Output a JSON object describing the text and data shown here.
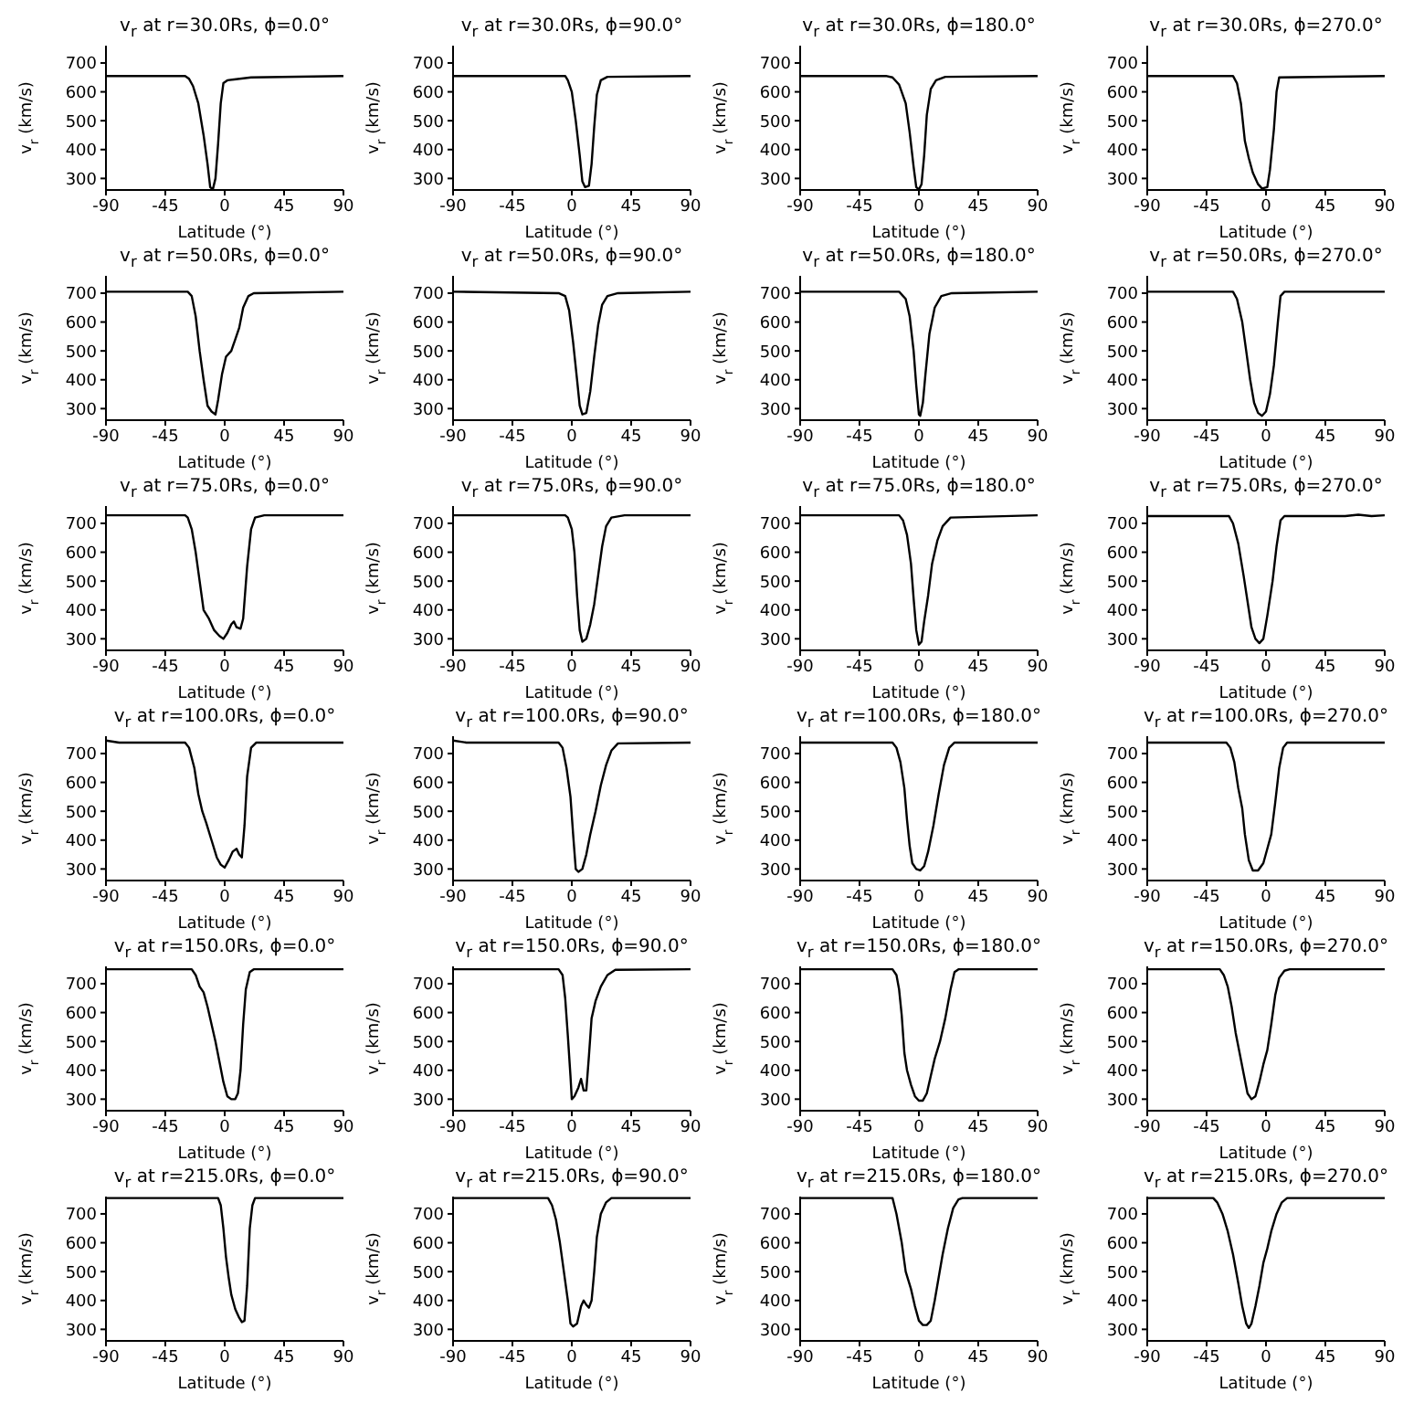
{
  "chart_data": [
    {
      "type": "line",
      "title": "v$_{r}$ at r=30.0Rs, ϕ=0.0°",
      "xlabel": "Latitude (°)",
      "ylabel": "v$_{r}$ (km/s)",
      "xlim": [
        -90,
        90
      ],
      "xticks": [
        -90,
        -45,
        0,
        45,
        90
      ],
      "ylim": [
        260,
        760
      ],
      "yticks": [
        300,
        400,
        500,
        600,
        700
      ],
      "x": [
        -90,
        -30,
        -27,
        -24,
        -20,
        -16,
        -13,
        -11,
        -9,
        -7,
        -5,
        -3,
        -1,
        2,
        20,
        90
      ],
      "series": [
        {
          "color": "#000000",
          "values": [
            655,
            655,
            645,
            620,
            560,
            450,
            350,
            270,
            262,
            300,
            420,
            560,
            630,
            640,
            650,
            655
          ]
        }
      ]
    },
    {
      "type": "line",
      "title": "v$_{r}$ at r=30.0Rs, ϕ=90.0°",
      "xlabel": "Latitude (°)",
      "ylabel": "v$_{r}$ (km/s)",
      "xlim": [
        -90,
        90
      ],
      "xticks": [
        -90,
        -45,
        0,
        45,
        90
      ],
      "ylim": [
        260,
        760
      ],
      "yticks": [
        300,
        400,
        500,
        600,
        700
      ],
      "x": [
        -90,
        -5,
        -3,
        0,
        3,
        6,
        8,
        10,
        13,
        15,
        17,
        19,
        22,
        27,
        90
      ],
      "series": [
        {
          "color": "#000000",
          "values": [
            655,
            655,
            640,
            600,
            500,
            380,
            290,
            270,
            275,
            350,
            480,
            590,
            640,
            652,
            655
          ]
        }
      ]
    },
    {
      "type": "line",
      "title": "v$_{r}$ at r=30.0Rs, ϕ=180.0°",
      "xlabel": "Latitude (°)",
      "ylabel": "v$_{r}$ (km/s)",
      "xlim": [
        -90,
        90
      ],
      "xticks": [
        -90,
        -45,
        0,
        45,
        90
      ],
      "ylim": [
        260,
        760
      ],
      "yticks": [
        300,
        400,
        500,
        600,
        700
      ],
      "x": [
        -90,
        -25,
        -20,
        -15,
        -10,
        -7,
        -4,
        -2,
        0,
        2,
        4,
        6,
        9,
        13,
        20,
        90
      ],
      "series": [
        {
          "color": "#000000",
          "values": [
            655,
            655,
            650,
            625,
            560,
            460,
            340,
            270,
            262,
            280,
            380,
            520,
            610,
            640,
            652,
            655
          ]
        }
      ]
    },
    {
      "type": "line",
      "title": "v$_{r}$ at r=30.0Rs, ϕ=270.0°",
      "xlabel": "Latitude (°)",
      "ylabel": "v$_{r}$ (km/s)",
      "xlim": [
        -90,
        90
      ],
      "xticks": [
        -90,
        -45,
        0,
        45,
        90
      ],
      "ylim": [
        260,
        760
      ],
      "yticks": [
        300,
        400,
        500,
        600,
        700
      ],
      "x": [
        -90,
        -25,
        -22,
        -19,
        -16,
        -13,
        -10,
        -6,
        -3,
        1,
        3,
        6,
        8,
        10,
        90
      ],
      "series": [
        {
          "color": "#000000",
          "values": [
            655,
            655,
            630,
            560,
            430,
            370,
            320,
            280,
            265,
            270,
            330,
            470,
            600,
            650,
            655
          ]
        }
      ]
    },
    {
      "type": "line",
      "title": "v$_{r}$ at r=50.0Rs, ϕ=0.0°",
      "xlabel": "Latitude (°)",
      "ylabel": "v$_{r}$ (km/s)",
      "xlim": [
        -90,
        90
      ],
      "xticks": [
        -90,
        -45,
        0,
        45,
        90
      ],
      "ylim": [
        260,
        760
      ],
      "yticks": [
        300,
        400,
        500,
        600,
        700
      ],
      "x": [
        -90,
        -28,
        -25,
        -22,
        -19,
        -16,
        -13,
        -10,
        -7,
        -5,
        -2,
        1,
        5,
        8,
        11,
        14,
        18,
        22,
        90
      ],
      "series": [
        {
          "color": "#000000",
          "values": [
            705,
            705,
            690,
            620,
            500,
            400,
            310,
            290,
            280,
            330,
            420,
            480,
            500,
            540,
            580,
            650,
            690,
            700,
            705
          ]
        }
      ]
    },
    {
      "type": "line",
      "title": "v$_{r}$ at r=50.0Rs, ϕ=90.0°",
      "xlabel": "Latitude (°)",
      "ylabel": "v$_{r}$ (km/s)",
      "xlim": [
        -90,
        90
      ],
      "xticks": [
        -90,
        -45,
        0,
        45,
        90
      ],
      "ylim": [
        260,
        760
      ],
      "yticks": [
        300,
        400,
        500,
        600,
        700
      ],
      "x": [
        -90,
        -10,
        -5,
        -2,
        1,
        4,
        6,
        8,
        11,
        14,
        17,
        20,
        23,
        27,
        35,
        90
      ],
      "series": [
        {
          "color": "#000000",
          "values": [
            705,
            700,
            690,
            640,
            530,
            400,
            310,
            280,
            285,
            360,
            480,
            590,
            660,
            690,
            700,
            705
          ]
        }
      ]
    },
    {
      "type": "line",
      "title": "v$_{r}$ at r=50.0Rs, ϕ=180.0°",
      "xlabel": "Latitude (°)",
      "ylabel": "v$_{r}$ (km/s)",
      "xlim": [
        -90,
        90
      ],
      "xticks": [
        -90,
        -45,
        0,
        45,
        90
      ],
      "ylim": [
        260,
        760
      ],
      "yticks": [
        300,
        400,
        500,
        600,
        700
      ],
      "x": [
        -90,
        -15,
        -10,
        -7,
        -4,
        -2,
        0,
        1,
        3,
        5,
        8,
        12,
        17,
        25,
        90
      ],
      "series": [
        {
          "color": "#000000",
          "values": [
            705,
            705,
            680,
            620,
            500,
            380,
            280,
            275,
            320,
            420,
            560,
            650,
            690,
            700,
            705
          ]
        }
      ]
    },
    {
      "type": "line",
      "title": "v$_{r}$ at r=50.0Rs, ϕ=270.0°",
      "xlabel": "Latitude (°)",
      "ylabel": "v$_{r}$ (km/s)",
      "xlim": [
        -90,
        90
      ],
      "xticks": [
        -90,
        -45,
        0,
        45,
        90
      ],
      "ylim": [
        260,
        760
      ],
      "yticks": [
        300,
        400,
        500,
        600,
        700
      ],
      "x": [
        -90,
        -25,
        -22,
        -18,
        -15,
        -12,
        -9,
        -6,
        -3,
        0,
        3,
        6,
        9,
        11,
        14,
        90
      ],
      "series": [
        {
          "color": "#000000",
          "values": [
            705,
            705,
            680,
            600,
            500,
            400,
            320,
            285,
            275,
            290,
            350,
            450,
            600,
            690,
            705,
            705
          ]
        }
      ]
    },
    {
      "type": "line",
      "title": "v$_{r}$ at r=75.0Rs, ϕ=0.0°",
      "xlabel": "Latitude (°)",
      "ylabel": "v$_{r}$ (km/s)",
      "xlim": [
        -90,
        90
      ],
      "xticks": [
        -90,
        -45,
        0,
        45,
        90
      ],
      "ylim": [
        260,
        760
      ],
      "yticks": [
        300,
        400,
        500,
        600,
        700
      ],
      "x": [
        -90,
        -30,
        -28,
        -25,
        -22,
        -19,
        -16,
        -12,
        -8,
        -4,
        -1,
        2,
        5,
        7,
        9,
        12,
        14,
        17,
        20,
        23,
        30,
        90
      ],
      "series": [
        {
          "color": "#000000",
          "values": [
            728,
            728,
            720,
            680,
            600,
            500,
            400,
            370,
            330,
            310,
            300,
            320,
            350,
            360,
            340,
            335,
            370,
            550,
            680,
            720,
            728,
            728
          ]
        }
      ]
    },
    {
      "type": "line",
      "title": "v$_{r}$ at r=75.0Rs, ϕ=90.0°",
      "xlabel": "Latitude (°)",
      "ylabel": "v$_{r}$ (km/s)",
      "xlim": [
        -90,
        90
      ],
      "xticks": [
        -90,
        -45,
        0,
        45,
        90
      ],
      "ylim": [
        260,
        760
      ],
      "yticks": [
        300,
        400,
        500,
        600,
        700
      ],
      "x": [
        -90,
        -5,
        -3,
        0,
        2,
        4,
        6,
        8,
        11,
        14,
        17,
        20,
        23,
        26,
        30,
        40,
        90
      ],
      "series": [
        {
          "color": "#000000",
          "values": [
            728,
            728,
            720,
            680,
            600,
            450,
            330,
            290,
            300,
            350,
            420,
            520,
            620,
            690,
            720,
            728,
            728
          ]
        }
      ]
    },
    {
      "type": "line",
      "title": "v$_{r}$ at r=75.0Rs, ϕ=180.0°",
      "xlabel": "Latitude (°)",
      "ylabel": "v$_{r}$ (km/s)",
      "xlim": [
        -90,
        90
      ],
      "xticks": [
        -90,
        -45,
        0,
        45,
        90
      ],
      "ylim": [
        260,
        760
      ],
      "yticks": [
        300,
        400,
        500,
        600,
        700
      ],
      "x": [
        -90,
        -15,
        -12,
        -9,
        -6,
        -4,
        -2,
        0,
        2,
        4,
        7,
        10,
        14,
        18,
        24,
        90
      ],
      "series": [
        {
          "color": "#000000",
          "values": [
            728,
            728,
            710,
            660,
            560,
            440,
            330,
            280,
            290,
            360,
            450,
            560,
            640,
            690,
            720,
            728
          ]
        }
      ]
    },
    {
      "type": "line",
      "title": "v$_{r}$ at r=75.0Rs, ϕ=270.0°",
      "xlabel": "Latitude (°)",
      "ylabel": "v$_{r}$ (km/s)",
      "xlim": [
        -90,
        90
      ],
      "xticks": [
        -90,
        -45,
        0,
        45,
        90
      ],
      "ylim": [
        260,
        760
      ],
      "yticks": [
        300,
        400,
        500,
        600,
        700
      ],
      "x": [
        -90,
        -28,
        -25,
        -21,
        -17,
        -14,
        -11,
        -8,
        -5,
        -2,
        1,
        5,
        8,
        11,
        14,
        60,
        70,
        80,
        90
      ],
      "series": [
        {
          "color": "#000000",
          "values": [
            725,
            725,
            700,
            630,
            520,
            430,
            340,
            300,
            285,
            300,
            380,
            500,
            620,
            710,
            725,
            725,
            730,
            725,
            728
          ]
        }
      ]
    },
    {
      "type": "line",
      "title": "v$_{r}$ at r=100.0Rs, ϕ=0.0°",
      "xlabel": "Latitude (°)",
      "ylabel": "v$_{r}$ (km/s)",
      "xlim": [
        -90,
        90
      ],
      "xticks": [
        -90,
        -45,
        0,
        45,
        90
      ],
      "ylim": [
        260,
        760
      ],
      "yticks": [
        300,
        400,
        500,
        600,
        700
      ],
      "x": [
        -90,
        -80,
        -30,
        -27,
        -23,
        -20,
        -17,
        -14,
        -10,
        -6,
        -3,
        0,
        3,
        6,
        9,
        11,
        13,
        15,
        17,
        20,
        24,
        90
      ],
      "series": [
        {
          "color": "#000000",
          "values": [
            745,
            738,
            738,
            720,
            650,
            560,
            500,
            460,
            400,
            340,
            315,
            305,
            330,
            360,
            370,
            350,
            340,
            450,
            620,
            720,
            738,
            738
          ]
        }
      ]
    },
    {
      "type": "line",
      "title": "v$_{r}$ at r=100.0Rs, ϕ=90.0°",
      "xlabel": "Latitude (°)",
      "ylabel": "v$_{r}$ (km/s)",
      "xlim": [
        -90,
        90
      ],
      "xticks": [
        -90,
        -45,
        0,
        45,
        90
      ],
      "ylim": [
        260,
        760
      ],
      "yticks": [
        300,
        400,
        500,
        600,
        700
      ],
      "x": [
        -90,
        -80,
        -10,
        -7,
        -4,
        -1,
        1,
        3,
        5,
        8,
        11,
        14,
        18,
        22,
        26,
        30,
        35,
        90
      ],
      "series": [
        {
          "color": "#000000",
          "values": [
            745,
            738,
            738,
            720,
            650,
            550,
            420,
            300,
            290,
            300,
            350,
            420,
            500,
            590,
            660,
            710,
            735,
            738
          ]
        }
      ]
    },
    {
      "type": "line",
      "title": "v$_{r}$ at r=100.0Rs, ϕ=180.0°",
      "xlabel": "Latitude (°)",
      "ylabel": "v$_{r}$ (km/s)",
      "xlim": [
        -90,
        90
      ],
      "xticks": [
        -90,
        -45,
        0,
        45,
        90
      ],
      "ylim": [
        260,
        760
      ],
      "yticks": [
        300,
        400,
        500,
        600,
        700
      ],
      "x": [
        -90,
        -20,
        -17,
        -14,
        -11,
        -9,
        -7,
        -5,
        -2,
        1,
        4,
        7,
        11,
        15,
        19,
        23,
        27,
        90
      ],
      "series": [
        {
          "color": "#000000",
          "values": [
            738,
            738,
            720,
            670,
            580,
            470,
            380,
            320,
            300,
            295,
            310,
            360,
            450,
            560,
            660,
            720,
            738,
            738
          ]
        }
      ]
    },
    {
      "type": "line",
      "title": "v$_{r}$ at r=100.0Rs, ϕ=270.0°",
      "xlabel": "Latitude (°)",
      "ylabel": "v$_{r}$ (km/s)",
      "xlim": [
        -90,
        90
      ],
      "xticks": [
        -90,
        -45,
        0,
        45,
        90
      ],
      "ylim": [
        260,
        760
      ],
      "yticks": [
        300,
        400,
        500,
        600,
        700
      ],
      "x": [
        -90,
        -30,
        -27,
        -24,
        -21,
        -18,
        -16,
        -13,
        -10,
        -6,
        -2,
        1,
        4,
        7,
        10,
        13,
        16,
        90
      ],
      "series": [
        {
          "color": "#000000",
          "values": [
            738,
            738,
            720,
            670,
            580,
            510,
            420,
            330,
            295,
            295,
            320,
            370,
            420,
            530,
            650,
            720,
            738,
            738
          ]
        }
      ]
    },
    {
      "type": "line",
      "title": "v$_{r}$ at r=150.0Rs, ϕ=0.0°",
      "xlabel": "Latitude (°)",
      "ylabel": "v$_{r}$ (km/s)",
      "xlim": [
        -90,
        90
      ],
      "xticks": [
        -90,
        -45,
        0,
        45,
        90
      ],
      "ylim": [
        260,
        760
      ],
      "yticks": [
        300,
        400,
        500,
        600,
        700
      ],
      "x": [
        -90,
        -25,
        -22,
        -19,
        -16,
        -13,
        -10,
        -7,
        -4,
        -1,
        2,
        5,
        8,
        10,
        12,
        14,
        16,
        19,
        22,
        90
      ],
      "series": [
        {
          "color": "#000000",
          "values": [
            750,
            750,
            730,
            690,
            670,
            620,
            560,
            500,
            430,
            360,
            310,
            300,
            300,
            320,
            400,
            560,
            680,
            740,
            750,
            750
          ]
        }
      ]
    },
    {
      "type": "line",
      "title": "v$_{r}$ at r=150.0Rs, ϕ=90.0°",
      "xlabel": "Latitude (°)",
      "ylabel": "v$_{r}$ (km/s)",
      "xlim": [
        -90,
        90
      ],
      "xticks": [
        -90,
        -45,
        0,
        45,
        90
      ],
      "ylim": [
        260,
        760
      ],
      "yticks": [
        300,
        400,
        500,
        600,
        700
      ],
      "x": [
        -90,
        -10,
        -7,
        -5,
        -3,
        -1,
        0,
        2,
        5,
        7,
        9,
        11,
        13,
        15,
        18,
        22,
        27,
        33,
        90
      ],
      "series": [
        {
          "color": "#000000",
          "values": [
            750,
            750,
            730,
            650,
            520,
            380,
            300,
            310,
            340,
            370,
            330,
            330,
            450,
            580,
            640,
            690,
            730,
            748,
            750
          ]
        }
      ]
    },
    {
      "type": "line",
      "title": "v$_{r}$ at r=150.0Rs, ϕ=180.0°",
      "xlabel": "Latitude (°)",
      "ylabel": "v$_{r}$ (km/s)",
      "xlim": [
        -90,
        90
      ],
      "xticks": [
        -90,
        -45,
        0,
        45,
        90
      ],
      "ylim": [
        260,
        760
      ],
      "yticks": [
        300,
        400,
        500,
        600,
        700
      ],
      "x": [
        -90,
        -20,
        -17,
        -15,
        -13,
        -11,
        -9,
        -6,
        -3,
        0,
        3,
        6,
        9,
        12,
        16,
        20,
        24,
        27,
        30,
        90
      ],
      "series": [
        {
          "color": "#000000",
          "values": [
            750,
            750,
            730,
            680,
            590,
            460,
            400,
            350,
            310,
            295,
            295,
            320,
            380,
            440,
            500,
            580,
            680,
            740,
            750,
            750
          ]
        }
      ]
    },
    {
      "type": "line",
      "title": "v$_{r}$ at r=150.0Rs, ϕ=270.0°",
      "xlabel": "Latitude (°)",
      "ylabel": "v$_{r}$ (km/s)",
      "xlim": [
        -90,
        90
      ],
      "xticks": [
        -90,
        -45,
        0,
        45,
        90
      ],
      "ylim": [
        260,
        760
      ],
      "yticks": [
        300,
        400,
        500,
        600,
        700
      ],
      "x": [
        -90,
        -35,
        -32,
        -29,
        -26,
        -23,
        -20,
        -17,
        -14,
        -11,
        -8,
        -5,
        -2,
        1,
        4,
        7,
        10,
        14,
        18,
        90
      ],
      "series": [
        {
          "color": "#000000",
          "values": [
            750,
            750,
            730,
            690,
            620,
            530,
            460,
            390,
            320,
            300,
            310,
            360,
            420,
            470,
            560,
            660,
            720,
            745,
            750,
            750
          ]
        }
      ]
    },
    {
      "type": "line",
      "title": "v$_{r}$ at r=215.0Rs, ϕ=0.0°",
      "xlabel": "Latitude (°)",
      "ylabel": "v$_{r}$ (km/s)",
      "xlim": [
        -90,
        90
      ],
      "xticks": [
        -90,
        -45,
        0,
        45,
        90
      ],
      "ylim": [
        260,
        760
      ],
      "yticks": [
        300,
        400,
        500,
        600,
        700
      ],
      "x": [
        -90,
        -5,
        -3,
        -1,
        1,
        3,
        5,
        8,
        11,
        13,
        15,
        17,
        19,
        21,
        23,
        90
      ],
      "series": [
        {
          "color": "#000000",
          "values": [
            755,
            755,
            730,
            650,
            550,
            480,
            420,
            370,
            340,
            325,
            330,
            450,
            650,
            730,
            755,
            755
          ]
        }
      ]
    },
    {
      "type": "line",
      "title": "v$_{r}$ at r=215.0Rs, ϕ=90.0°",
      "xlabel": "Latitude (°)",
      "ylabel": "v$_{r}$ (km/s)",
      "xlim": [
        -90,
        90
      ],
      "xticks": [
        -90,
        -45,
        0,
        45,
        90
      ],
      "ylim": [
        260,
        760
      ],
      "yticks": [
        300,
        400,
        500,
        600,
        700
      ],
      "x": [
        -90,
        -18,
        -15,
        -12,
        -9,
        -6,
        -3,
        -1,
        1,
        4,
        7,
        9,
        11,
        13,
        15,
        17,
        19,
        22,
        26,
        30,
        90
      ],
      "series": [
        {
          "color": "#000000",
          "values": [
            755,
            755,
            730,
            680,
            600,
            500,
            400,
            320,
            310,
            320,
            380,
            400,
            385,
            375,
            400,
            500,
            620,
            700,
            740,
            755,
            755
          ]
        }
      ]
    },
    {
      "type": "line",
      "title": "v$_{r}$ at r=215.0Rs, ϕ=180.0°",
      "xlabel": "Latitude (°)",
      "ylabel": "v$_{r}$ (km/s)",
      "xlim": [
        -90,
        90
      ],
      "xticks": [
        -90,
        -45,
        0,
        45,
        90
      ],
      "ylim": [
        260,
        760
      ],
      "yticks": [
        300,
        400,
        500,
        600,
        700
      ],
      "x": [
        -90,
        -20,
        -17,
        -13,
        -10,
        -8,
        -6,
        -3,
        0,
        3,
        6,
        9,
        12,
        15,
        18,
        22,
        26,
        30,
        33,
        90
      ],
      "series": [
        {
          "color": "#000000",
          "values": [
            755,
            755,
            700,
            600,
            500,
            470,
            440,
            380,
            330,
            315,
            315,
            330,
            400,
            480,
            560,
            650,
            720,
            750,
            755,
            755
          ]
        }
      ]
    },
    {
      "type": "line",
      "title": "v$_{r}$ at r=215.0Rs, ϕ=270.0°",
      "xlabel": "Latitude (°)",
      "ylabel": "v$_{r}$ (km/s)",
      "xlim": [
        -90,
        90
      ],
      "xticks": [
        -90,
        -45,
        0,
        45,
        90
      ],
      "ylim": [
        260,
        760
      ],
      "yticks": [
        300,
        400,
        500,
        600,
        700
      ],
      "x": [
        -90,
        -40,
        -37,
        -33,
        -29,
        -25,
        -21,
        -18,
        -15,
        -13,
        -11,
        -8,
        -5,
        -2,
        1,
        4,
        8,
        12,
        16,
        90
      ],
      "series": [
        {
          "color": "#000000",
          "values": [
            755,
            755,
            740,
            700,
            640,
            560,
            460,
            380,
            320,
            305,
            320,
            380,
            450,
            530,
            580,
            640,
            700,
            740,
            755,
            755
          ]
        }
      ]
    }
  ]
}
